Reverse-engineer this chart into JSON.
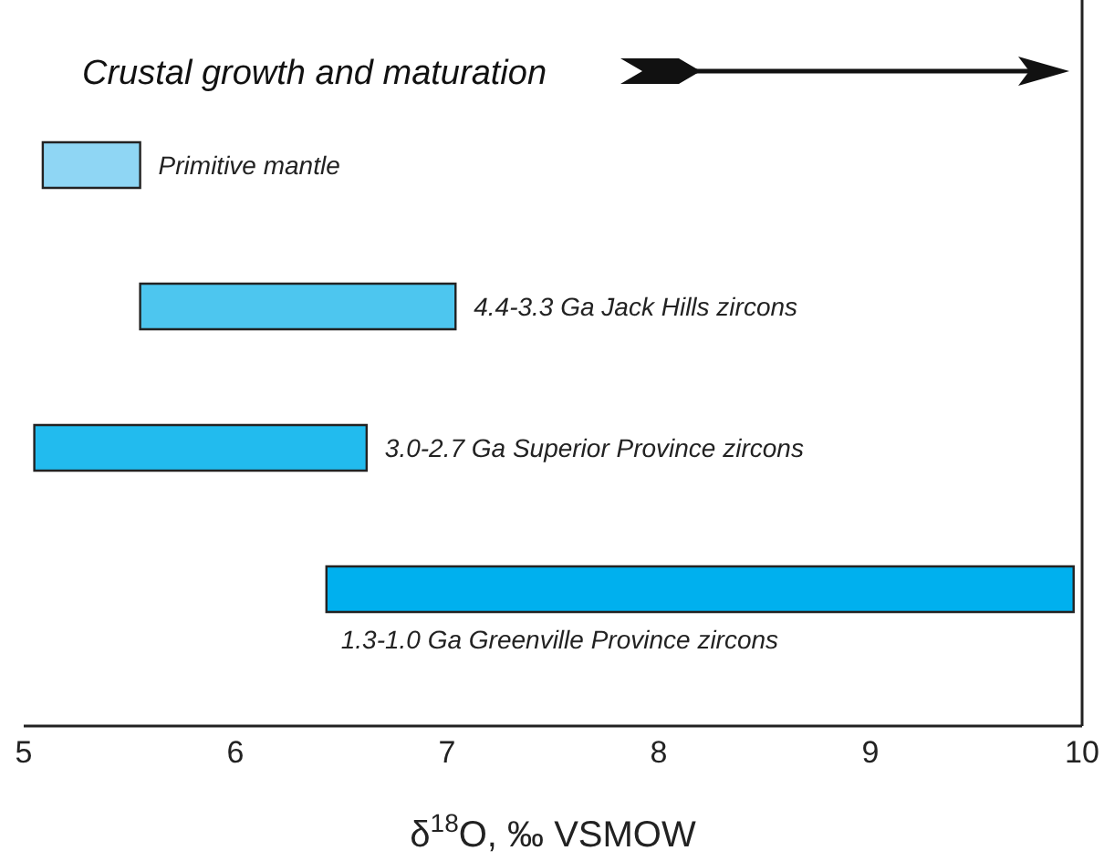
{
  "chart_data": {
    "type": "bar",
    "orientation": "horizontal",
    "categories": [
      "Primitive mantle",
      "4.4-3.3 Ga Jack Hills zircons",
      "3.0-2.7 Ga Superior Province zircons",
      "1.3-1.0 Ga Greenville Province zircons"
    ],
    "base": [
      5.09,
      5.55,
      5.05,
      6.43
    ],
    "values": [
      0.46,
      1.49,
      1.57,
      3.53
    ],
    "colors": [
      "#8fd6f4",
      "#4dc6ef",
      "#22bbee",
      "#00b0ee"
    ],
    "xlim": [
      5,
      10
    ],
    "xticks": [
      5,
      6,
      7,
      8,
      9,
      10
    ],
    "xlabel": "δ$^{18}$O, ‰ VSMOW",
    "tick_labels": "x",
    "annotations": [
      "Crustal growth and maturation"
    ]
  }
}
